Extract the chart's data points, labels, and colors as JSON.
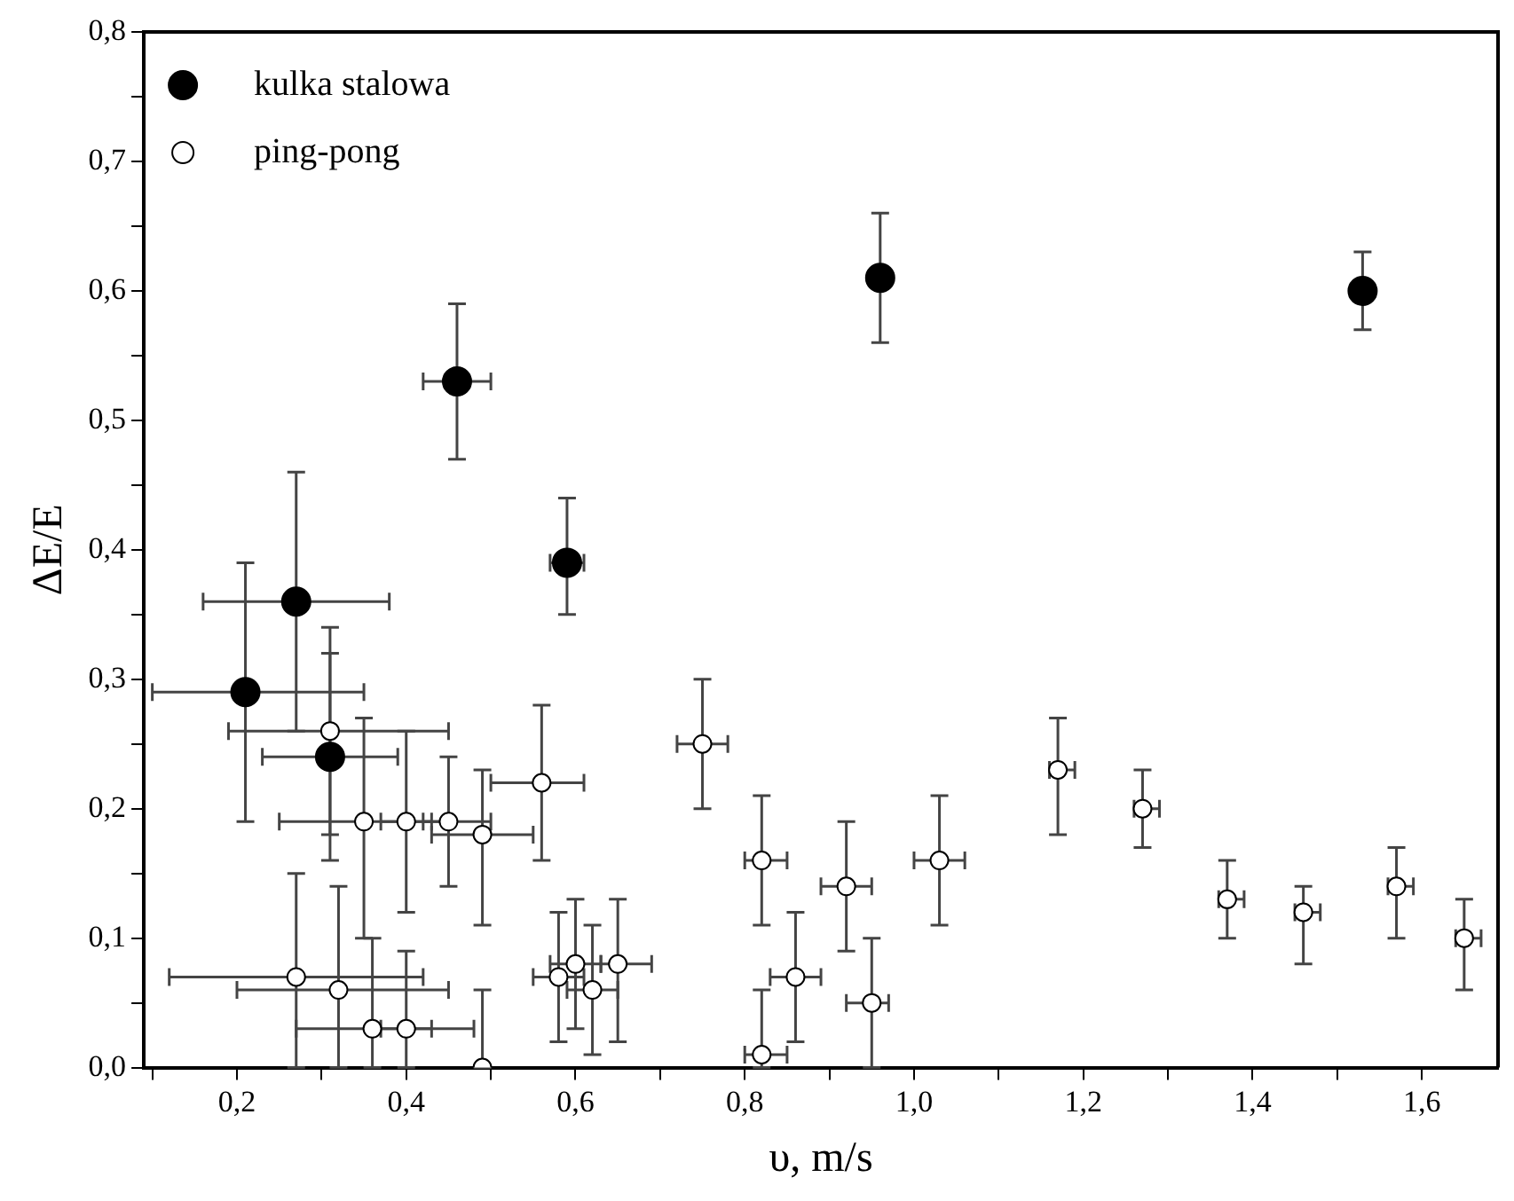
{
  "chart_data": {
    "type": "scatter",
    "xlabel": "υ, m/s",
    "ylabel": "ΔE/E",
    "xlim": [
      0.09,
      1.69
    ],
    "ylim": [
      0,
      0.8
    ],
    "xticks": [
      {
        "value": 0.1,
        "label": null
      },
      {
        "value": 0.2,
        "label": "0,2"
      },
      {
        "value": 0.3,
        "label": null
      },
      {
        "value": 0.4,
        "label": "0,4"
      },
      {
        "value": 0.5,
        "label": null
      },
      {
        "value": 0.6,
        "label": "0,6"
      },
      {
        "value": 0.7,
        "label": null
      },
      {
        "value": 0.8,
        "label": "0,8"
      },
      {
        "value": 0.9,
        "label": null
      },
      {
        "value": 1.0,
        "label": "1,0"
      },
      {
        "value": 1.1,
        "label": null
      },
      {
        "value": 1.2,
        "label": "1,2"
      },
      {
        "value": 1.3,
        "label": null
      },
      {
        "value": 1.4,
        "label": "1,4"
      },
      {
        "value": 1.5,
        "label": null
      },
      {
        "value": 1.6,
        "label": "1,6"
      }
    ],
    "yticks": [
      {
        "value": 0,
        "label": "0,0"
      },
      {
        "value": 0.05,
        "label": null
      },
      {
        "value": 0.1,
        "label": "0,1"
      },
      {
        "value": 0.15,
        "label": null
      },
      {
        "value": 0.2,
        "label": "0,2"
      },
      {
        "value": 0.25,
        "label": null
      },
      {
        "value": 0.3,
        "label": "0,3"
      },
      {
        "value": 0.35,
        "label": null
      },
      {
        "value": 0.4,
        "label": "0,4"
      },
      {
        "value": 0.45,
        "label": null
      },
      {
        "value": 0.5,
        "label": "0,5"
      },
      {
        "value": 0.55,
        "label": null
      },
      {
        "value": 0.6,
        "label": "0,6"
      },
      {
        "value": 0.65,
        "label": null
      },
      {
        "value": 0.7,
        "label": "0,7"
      },
      {
        "value": 0.75,
        "label": null
      },
      {
        "value": 0.8,
        "label": "0,8"
      }
    ],
    "grid": false,
    "legend": "top left",
    "marker": "circle",
    "series": [
      {
        "name": "kulka stalowa",
        "color": "#000000",
        "x": [
          0.46,
          0.59,
          0.96,
          1.53,
          0.27,
          0.21,
          0.31
        ],
        "values": [
          0.53,
          0.39,
          0.61,
          0.6,
          0.36,
          0.29,
          0.24
        ],
        "errors": [
          [
            0.47,
            0.59
          ],
          [
            0.35,
            0.44
          ],
          [
            0.56,
            0.66
          ],
          [
            0.57,
            0.63
          ],
          [
            0.26,
            0.46
          ],
          [
            0.19,
            0.39
          ],
          [
            0.16,
            0.34
          ]
        ],
        "xerrors": [
          [
            0.42,
            0.5
          ],
          [
            0.57,
            0.61
          ],
          null,
          null,
          [
            0.16,
            0.38
          ],
          [
            0.1,
            0.35
          ],
          [
            0.23,
            0.39
          ]
        ]
      },
      {
        "name": "ping-pong",
        "color": "#ffffff",
        "x": [
          0.31,
          0.35,
          0.4,
          0.45,
          0.49,
          0.56,
          0.27,
          0.32,
          0.36,
          0.4,
          0.49,
          0.75,
          0.82,
          0.92,
          1.03,
          0.86,
          0.95,
          0.82,
          0.6,
          0.62,
          0.65,
          0.58,
          1.17,
          1.27,
          1.37,
          1.46,
          1.57,
          1.65
        ],
        "values": [
          0.26,
          0.19,
          0.19,
          0.19,
          0.18,
          0.22,
          0.07,
          0.06,
          0.03,
          0.03,
          0.0,
          0.25,
          0.16,
          0.14,
          0.16,
          0.07,
          0.05,
          0.01,
          0.08,
          0.06,
          0.08,
          0.07,
          0.23,
          0.2,
          0.13,
          0.12,
          0.14,
          0.1
        ],
        "errors": [
          [
            0.18,
            0.32
          ],
          [
            0.1,
            0.27
          ],
          [
            0.12,
            0.26
          ],
          [
            0.14,
            0.24
          ],
          [
            0.11,
            0.23
          ],
          [
            0.16,
            0.28
          ],
          [
            0,
            0.15
          ],
          [
            0,
            0.14
          ],
          [
            0,
            0.1
          ],
          [
            0,
            0.09
          ],
          [
            0,
            0.06
          ],
          [
            0.2,
            0.3
          ],
          [
            0.11,
            0.21
          ],
          [
            0.09,
            0.19
          ],
          [
            0.11,
            0.21
          ],
          [
            0.02,
            0.12
          ],
          [
            0,
            0.1
          ],
          [
            0,
            0.06
          ],
          [
            0.03,
            0.13
          ],
          [
            0.01,
            0.11
          ],
          [
            0.02,
            0.13
          ],
          [
            0.02,
            0.12
          ],
          [
            0.18,
            0.27
          ],
          [
            0.17,
            0.23
          ],
          [
            0.1,
            0.16
          ],
          [
            0.08,
            0.14
          ],
          [
            0.1,
            0.17
          ],
          [
            0.06,
            0.13
          ]
        ],
        "xerrors": [
          [
            0.19,
            0.45
          ],
          [
            0.25,
            0.45
          ],
          [
            0.37,
            0.43
          ],
          [
            0.42,
            0.5
          ],
          [
            0.43,
            0.55
          ],
          [
            0.5,
            0.61
          ],
          [
            0.12,
            0.42
          ],
          [
            0.2,
            0.45
          ],
          [
            0.27,
            0.48
          ],
          [
            0.37,
            0.43
          ],
          null,
          [
            0.72,
            0.78
          ],
          [
            0.8,
            0.85
          ],
          [
            0.89,
            0.95
          ],
          [
            1.0,
            1.06
          ],
          [
            0.83,
            0.89
          ],
          [
            0.92,
            0.97
          ],
          [
            0.8,
            0.85
          ],
          [
            0.57,
            0.63
          ],
          [
            0.59,
            0.65
          ],
          [
            0.63,
            0.69
          ],
          [
            0.55,
            0.61
          ],
          [
            1.16,
            1.19
          ],
          [
            1.26,
            1.29
          ],
          [
            1.36,
            1.39
          ],
          [
            1.45,
            1.48
          ],
          [
            1.56,
            1.59
          ],
          [
            1.64,
            1.67
          ]
        ]
      }
    ]
  }
}
